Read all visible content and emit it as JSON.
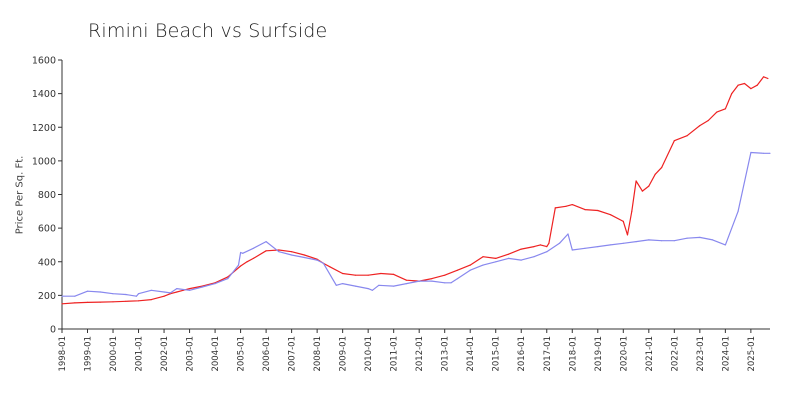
{
  "chart_data": {
    "type": "line",
    "title": "Rimini Beach vs Surfside",
    "xlabel": "",
    "ylabel": "Price Per Sq. Ft.",
    "ylim": [
      0,
      1600
    ],
    "yticks": [
      0,
      200,
      400,
      600,
      800,
      1000,
      1200,
      1400,
      1600
    ],
    "xticks": [
      "1998-01",
      "1999-01",
      "2000-01",
      "2001-01",
      "2002-01",
      "2003-01",
      "2004-01",
      "2005-01",
      "2006-01",
      "2007-01",
      "2008-01",
      "2009-01",
      "2010-01",
      "2011-01",
      "2012-01",
      "2013-01",
      "2014-01",
      "2015-01",
      "2016-01",
      "2017-01",
      "2018-01",
      "2019-01",
      "2020-01",
      "2021-01",
      "2022-01",
      "2023-01",
      "2024-01",
      "2025-01"
    ],
    "grid": false,
    "legend": "none",
    "series": [
      {
        "color": "#ee2222",
        "x": [
          "1998-01",
          "1998-07",
          "1999-01",
          "1999-07",
          "2000-01",
          "2000-07",
          "2001-01",
          "2001-07",
          "2002-01",
          "2002-04",
          "2002-07",
          "2002-10",
          "2003-01",
          "2003-07",
          "2004-01",
          "2004-07",
          "2005-01",
          "2005-04",
          "2005-07",
          "2006-01",
          "2006-07",
          "2007-01",
          "2007-07",
          "2008-01",
          "2008-04",
          "2008-07",
          "2009-01",
          "2009-07",
          "2010-01",
          "2010-07",
          "2011-01",
          "2011-07",
          "2012-01",
          "2012-07",
          "2013-01",
          "2013-07",
          "2014-01",
          "2014-07",
          "2015-01",
          "2015-07",
          "2016-01",
          "2016-07",
          "2016-10",
          "2017-01",
          "2017-02",
          "2017-05",
          "2017-10",
          "2018-01",
          "2018-07",
          "2019-01",
          "2019-07",
          "2020-01",
          "2020-03",
          "2020-05",
          "2020-07",
          "2020-10",
          "2021-01",
          "2021-04",
          "2021-07",
          "2022-01",
          "2022-07",
          "2023-01",
          "2023-05",
          "2023-09",
          "2024-01",
          "2024-04",
          "2024-07",
          "2024-10",
          "2025-01",
          "2025-04",
          "2025-07",
          "2025-09"
        ],
        "y": [
          150,
          155,
          158,
          160,
          162,
          165,
          168,
          175,
          195,
          210,
          220,
          230,
          240,
          255,
          275,
          310,
          375,
          400,
          420,
          465,
          470,
          460,
          440,
          415,
          390,
          370,
          330,
          320,
          320,
          330,
          325,
          290,
          285,
          300,
          320,
          350,
          380,
          430,
          420,
          445,
          475,
          490,
          500,
          490,
          510,
          720,
          730,
          740,
          710,
          705,
          680,
          640,
          560,
          700,
          880,
          820,
          850,
          920,
          960,
          1120,
          1150,
          1210,
          1240,
          1290,
          1310,
          1400,
          1450,
          1460,
          1430,
          1450,
          1500,
          1490
        ]
      },
      {
        "color": "#8888ee",
        "x": [
          "1998-01",
          "1998-07",
          "1999-01",
          "1999-07",
          "2000-01",
          "2000-07",
          "2000-12",
          "2001-01",
          "2001-07",
          "2002-01",
          "2002-04",
          "2002-07",
          "2003-01",
          "2003-07",
          "2004-01",
          "2004-07",
          "2004-12",
          "2005-01",
          "2005-02",
          "2005-07",
          "2006-01",
          "2006-07",
          "2007-01",
          "2007-07",
          "2008-01",
          "2008-04",
          "2008-10",
          "2009-01",
          "2009-07",
          "2010-01",
          "2010-03",
          "2010-06",
          "2011-01",
          "2011-07",
          "2012-01",
          "2012-07",
          "2013-01",
          "2013-04",
          "2013-07",
          "2014-01",
          "2014-07",
          "2015-01",
          "2015-07",
          "2016-01",
          "2016-07",
          "2017-01",
          "2017-07",
          "2017-11",
          "2018-01",
          "2018-07",
          "2019-01",
          "2019-07",
          "2020-01",
          "2020-07",
          "2021-01",
          "2021-07",
          "2022-01",
          "2022-07",
          "2023-01",
          "2023-07",
          "2024-01",
          "2024-07",
          "2025-01",
          "2025-07",
          "2025-10"
        ],
        "y": [
          195,
          195,
          225,
          220,
          210,
          205,
          195,
          210,
          230,
          220,
          215,
          240,
          230,
          250,
          270,
          300,
          380,
          455,
          450,
          480,
          520,
          460,
          440,
          425,
          410,
          390,
          260,
          270,
          255,
          240,
          230,
          260,
          255,
          270,
          285,
          285,
          275,
          275,
          300,
          350,
          380,
          400,
          420,
          410,
          430,
          460,
          510,
          565,
          470,
          480,
          490,
          500,
          510,
          520,
          530,
          525,
          525,
          540,
          545,
          530,
          500,
          700,
          1050,
          1045,
          1045
        ]
      }
    ]
  }
}
